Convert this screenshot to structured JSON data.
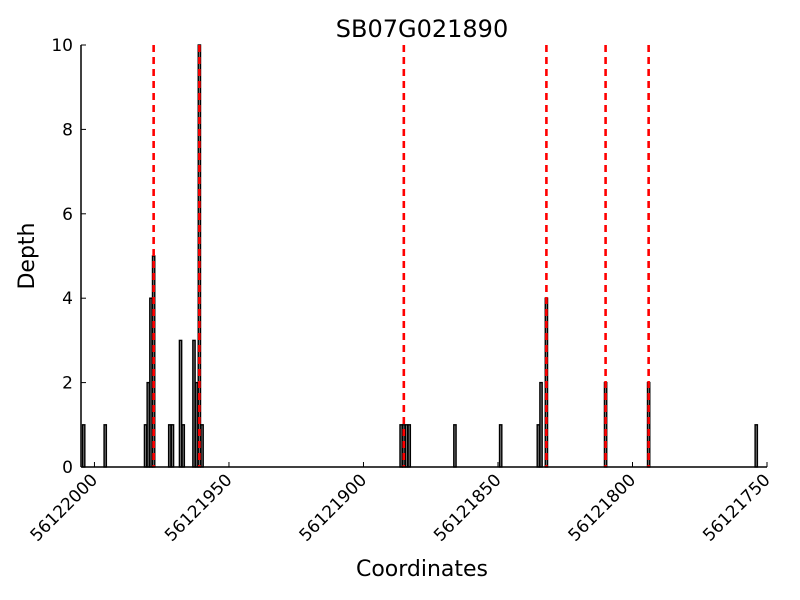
{
  "chart_data": {
    "type": "bar",
    "title": "SB07G021890",
    "xlabel": "Coordinates",
    "ylabel": "Depth",
    "x_axis_reversed": true,
    "xlim": [
      56122005,
      56121750
    ],
    "ylim": [
      0,
      10
    ],
    "x_ticks": [
      56122000,
      56121950,
      56121900,
      56121850,
      56121800,
      56121750
    ],
    "x_tick_labels": [
      "56122000",
      "56121950",
      "56121900",
      "56121850",
      "56121800",
      "56121750"
    ],
    "y_ticks": [
      0,
      2,
      4,
      6,
      8,
      10
    ],
    "y_tick_labels": [
      "0",
      "2",
      "4",
      "6",
      "8",
      "10"
    ],
    "grid": false,
    "bar_color": "#000000",
    "marker_color": "#ff0000",
    "bars": [
      {
        "x": 56122004,
        "y": 1
      },
      {
        "x": 56121996,
        "y": 1
      },
      {
        "x": 56121981,
        "y": 1
      },
      {
        "x": 56121980,
        "y": 2
      },
      {
        "x": 56121979,
        "y": 4
      },
      {
        "x": 56121978,
        "y": 5
      },
      {
        "x": 56121972,
        "y": 1
      },
      {
        "x": 56121971,
        "y": 1
      },
      {
        "x": 56121968,
        "y": 3
      },
      {
        "x": 56121967,
        "y": 1
      },
      {
        "x": 56121963,
        "y": 3
      },
      {
        "x": 56121962,
        "y": 2
      },
      {
        "x": 56121961,
        "y": 10
      },
      {
        "x": 56121960,
        "y": 1
      },
      {
        "x": 56121886,
        "y": 1
      },
      {
        "x": 56121885,
        "y": 1
      },
      {
        "x": 56121884,
        "y": 1
      },
      {
        "x": 56121883,
        "y": 1
      },
      {
        "x": 56121866,
        "y": 1
      },
      {
        "x": 56121849,
        "y": 1
      },
      {
        "x": 56121835,
        "y": 1
      },
      {
        "x": 56121834,
        "y": 2
      },
      {
        "x": 56121832,
        "y": 4
      },
      {
        "x": 56121810,
        "y": 2
      },
      {
        "x": 56121794,
        "y": 2
      },
      {
        "x": 56121754,
        "y": 1
      }
    ],
    "markers": [
      56121978,
      56121961,
      56121885,
      56121832,
      56121810,
      56121794
    ]
  }
}
